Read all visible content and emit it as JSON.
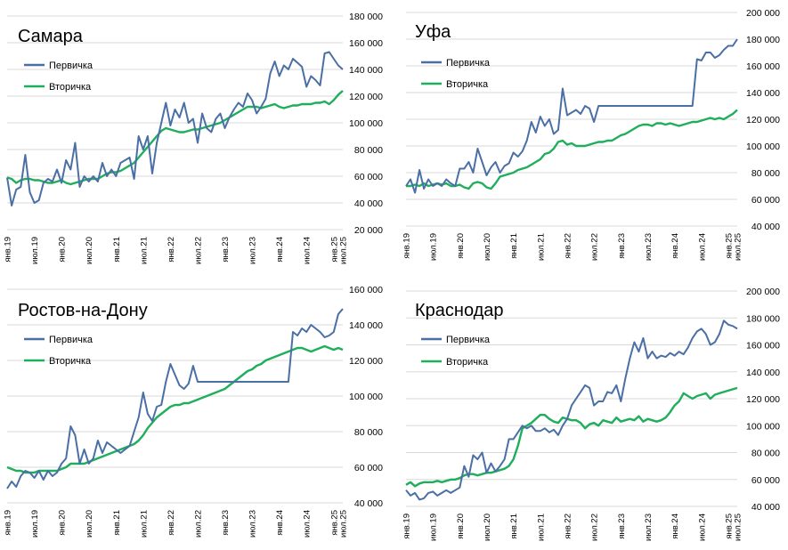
{
  "colors": {
    "primary": "#4a6fa5",
    "secondary": "#1fae5b",
    "grid": "#d9d9d9"
  },
  "legend": {
    "primary": "Первичка",
    "secondary": "Вторичка"
  },
  "x_tick_labels": [
    "янв.19",
    "июл.19",
    "янв.20",
    "июл.20",
    "янв.21",
    "июл.21",
    "янв.22",
    "июл.22",
    "янв.23",
    "июл.23",
    "янв.24",
    "июл.24",
    "янв.25",
    "июл.25"
  ],
  "chart_data": [
    {
      "id": "samara",
      "type": "line",
      "title": "Самара",
      "ylim": [
        20000,
        180000
      ],
      "yticks": [
        "20 000",
        "40 000",
        "60 000",
        "80 000",
        "100 000",
        "120 000",
        "140 000",
        "160 000",
        "180 000"
      ],
      "series": [
        {
          "name": "Первичка",
          "values": [
            59000,
            38000,
            50000,
            52000,
            76000,
            48000,
            40000,
            42000,
            55000,
            58000,
            56000,
            65000,
            55000,
            72000,
            65000,
            85000,
            52000,
            60000,
            56000,
            60000,
            56000,
            70000,
            60000,
            65000,
            60000,
            70000,
            72000,
            74000,
            58000,
            90000,
            80000,
            90000,
            62000,
            85000,
            100000,
            115000,
            98000,
            110000,
            104000,
            115000,
            100000,
            103000,
            85000,
            107000,
            96000,
            93000,
            103000,
            107000,
            96000,
            104000,
            110000,
            115000,
            112000,
            122000,
            117000,
            107000,
            112000,
            118000,
            137000,
            146000,
            135000,
            143000,
            140000,
            148000,
            145000,
            142000,
            127000,
            135000,
            132000,
            128000,
            152000,
            153000,
            148000,
            143000,
            140000
          ]
        },
        {
          "name": "Вторичка",
          "values": [
            59000,
            58000,
            55000,
            57000,
            58000,
            58000,
            57000,
            57000,
            56000,
            55000,
            55000,
            56000,
            57000,
            55000,
            54000,
            55000,
            56000,
            57000,
            58000,
            58000,
            58000,
            60000,
            62000,
            63000,
            63000,
            64000,
            66000,
            68000,
            70000,
            74000,
            78000,
            82000,
            86000,
            90000,
            94000,
            96000,
            95000,
            94000,
            93000,
            93000,
            94000,
            95000,
            95000,
            96000,
            97000,
            98000,
            99000,
            100000,
            102000,
            104000,
            106000,
            108000,
            110000,
            112000,
            112000,
            112000,
            111000,
            112000,
            113000,
            114000,
            112000,
            111000,
            112000,
            113000,
            113000,
            114000,
            114000,
            114000,
            115000,
            115000,
            116000,
            114000,
            117000,
            121000,
            124000
          ]
        }
      ]
    },
    {
      "id": "ufa",
      "type": "line",
      "title": "Уфа",
      "ylim": [
        40000,
        200000
      ],
      "yticks": [
        "40 000",
        "60 000",
        "80 000",
        "100 000",
        "120 000",
        "140 000",
        "160 000",
        "180 000",
        "200 000"
      ],
      "series": [
        {
          "name": "Первичка",
          "values": [
            70000,
            75000,
            65000,
            82000,
            68000,
            75000,
            70000,
            72000,
            70000,
            75000,
            72000,
            70000,
            83000,
            83000,
            88000,
            80000,
            98000,
            88000,
            78000,
            84000,
            88000,
            80000,
            85000,
            87000,
            95000,
            92000,
            96000,
            104000,
            118000,
            110000,
            122000,
            115000,
            120000,
            109000,
            112000,
            143000,
            123000,
            125000,
            127000,
            124000,
            130000,
            128000,
            118000,
            130000,
            130000,
            130000,
            130000,
            130000,
            130000,
            130000,
            130000,
            130000,
            130000,
            130000,
            130000,
            130000,
            130000,
            130000,
            130000,
            130000,
            130000,
            130000,
            130000,
            130000,
            130000,
            165000,
            164000,
            170000,
            170000,
            166000,
            168000,
            172000,
            175000,
            175000,
            180000
          ]
        },
        {
          "name": "Вторичка",
          "values": [
            70000,
            70000,
            71000,
            70000,
            72000,
            70000,
            71000,
            72000,
            71000,
            72000,
            70000,
            70000,
            71000,
            69000,
            68000,
            72000,
            73000,
            72000,
            69000,
            68000,
            72000,
            77000,
            78000,
            79000,
            80000,
            82000,
            83000,
            84000,
            86000,
            88000,
            90000,
            94000,
            95000,
            98000,
            103000,
            104000,
            101000,
            102000,
            100000,
            100000,
            100000,
            101000,
            102000,
            103000,
            103000,
            104000,
            104000,
            106000,
            108000,
            109000,
            111000,
            113000,
            115000,
            116000,
            116000,
            115000,
            117000,
            117000,
            116000,
            117000,
            116000,
            115000,
            116000,
            117000,
            118000,
            118000,
            119000,
            120000,
            121000,
            120000,
            121000,
            120000,
            122000,
            124000,
            127000
          ]
        }
      ]
    },
    {
      "id": "rostov",
      "type": "line",
      "title": "Ростов-на-Дону",
      "ylim": [
        40000,
        160000
      ],
      "yticks": [
        "40 000",
        "60 000",
        "80 000",
        "100 000",
        "120 000",
        "140 000",
        "160 000"
      ],
      "series": [
        {
          "name": "Первичка",
          "values": [
            48000,
            52000,
            49000,
            55000,
            58000,
            57000,
            54000,
            58000,
            53000,
            58000,
            55000,
            57000,
            62000,
            65000,
            83000,
            78000,
            62000,
            70000,
            62000,
            65000,
            75000,
            68000,
            74000,
            72000,
            70000,
            68000,
            70000,
            72000,
            80000,
            88000,
            102000,
            90000,
            86000,
            94000,
            95000,
            108000,
            118000,
            112000,
            106000,
            104000,
            107000,
            117000,
            108000,
            108000,
            108000,
            108000,
            108000,
            108000,
            108000,
            108000,
            108000,
            108000,
            108000,
            108000,
            108000,
            108000,
            108000,
            108000,
            108000,
            108000,
            108000,
            108000,
            108000,
            136000,
            134000,
            138000,
            136000,
            140000,
            138000,
            136000,
            133000,
            134000,
            136000,
            146000,
            149000
          ]
        },
        {
          "name": "Вторичка",
          "values": [
            60000,
            59000,
            58000,
            58000,
            57000,
            57000,
            57000,
            58000,
            58000,
            58000,
            58000,
            58000,
            59000,
            60000,
            62000,
            62000,
            62000,
            62000,
            63000,
            64000,
            65000,
            66000,
            67000,
            68000,
            69000,
            70000,
            71000,
            72000,
            73000,
            75000,
            78000,
            82000,
            85000,
            88000,
            90000,
            92000,
            94000,
            95000,
            95000,
            96000,
            96000,
            97000,
            98000,
            99000,
            100000,
            101000,
            102000,
            103000,
            104000,
            106000,
            108000,
            110000,
            112000,
            114000,
            115000,
            117000,
            118000,
            120000,
            121000,
            122000,
            123000,
            124000,
            125000,
            126000,
            127000,
            127000,
            126000,
            125000,
            126000,
            127000,
            128000,
            127000,
            126000,
            127000,
            126000
          ]
        }
      ]
    },
    {
      "id": "krasnodar",
      "type": "line",
      "title": "Краснодар",
      "ylim": [
        40000,
        200000
      ],
      "yticks": [
        "40 000",
        "60 000",
        "80 000",
        "100 000",
        "120 000",
        "140 000",
        "160 000",
        "180 000",
        "200 000"
      ],
      "series": [
        {
          "name": "Первичка",
          "values": [
            52000,
            48000,
            50000,
            45000,
            46000,
            50000,
            51000,
            48000,
            50000,
            52000,
            50000,
            52000,
            54000,
            70000,
            62000,
            78000,
            75000,
            80000,
            65000,
            72000,
            66000,
            70000,
            75000,
            90000,
            90000,
            95000,
            100000,
            98000,
            100000,
            96000,
            96000,
            98000,
            95000,
            97000,
            93000,
            100000,
            105000,
            115000,
            120000,
            125000,
            130000,
            128000,
            115000,
            118000,
            118000,
            125000,
            124000,
            130000,
            118000,
            135000,
            150000,
            162000,
            155000,
            165000,
            150000,
            155000,
            150000,
            152000,
            151000,
            154000,
            152000,
            155000,
            153000,
            158000,
            165000,
            170000,
            172000,
            168000,
            160000,
            162000,
            168000,
            178000,
            175000,
            174000,
            172000
          ]
        },
        {
          "name": "Вторичка",
          "values": [
            56000,
            58000,
            55000,
            57000,
            58000,
            58000,
            58000,
            59000,
            58000,
            59000,
            60000,
            60000,
            61000,
            63000,
            64000,
            64000,
            63000,
            64000,
            65000,
            65000,
            66000,
            67000,
            68000,
            70000,
            75000,
            85000,
            98000,
            100000,
            102000,
            105000,
            108000,
            108000,
            105000,
            103000,
            102000,
            106000,
            105000,
            104000,
            104000,
            102000,
            98000,
            101000,
            102000,
            100000,
            104000,
            103000,
            102000,
            106000,
            103000,
            104000,
            105000,
            104000,
            107000,
            103000,
            105000,
            104000,
            103000,
            104000,
            106000,
            110000,
            115000,
            118000,
            124000,
            122000,
            120000,
            122000,
            123000,
            124000,
            120000,
            123000,
            124000,
            125000,
            126000,
            127000,
            128000
          ]
        }
      ]
    }
  ]
}
